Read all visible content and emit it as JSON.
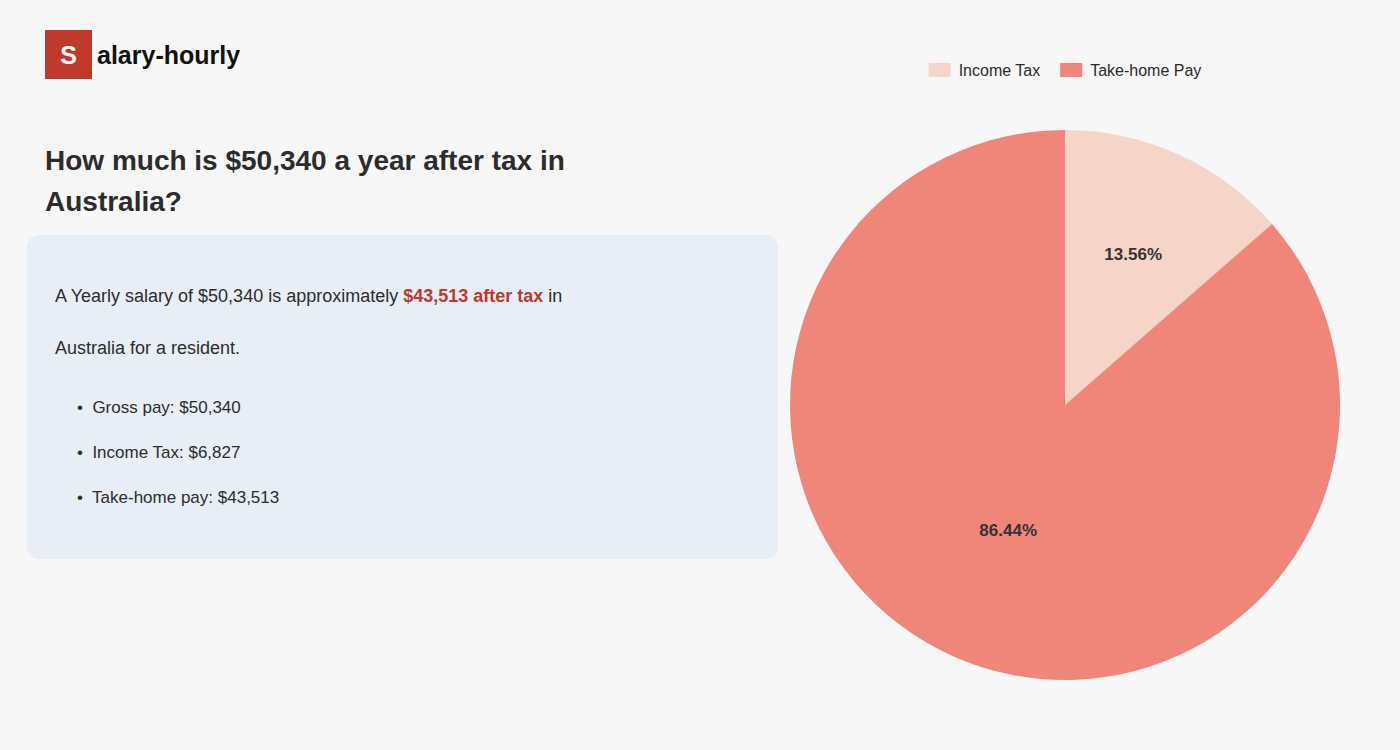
{
  "chart_data": {
    "type": "pie",
    "title": "How much is $50,340 a year after tax in\nAustralia?",
    "categories": [
      "Income Tax",
      "Take-home Pay"
    ],
    "values": [
      13.56,
      86.44
    ],
    "value_labels": [
      "13.56%",
      "86.44%"
    ],
    "colors": [
      "#f5d5c8",
      "#f0857a"
    ],
    "data_labels": true,
    "legend": "top",
    "annotations": [
      {
        "text": "S",
        "color": "#c0392b"
      },
      {
        "text": "alary-hourly"
      },
      {
        "text": "A Yearly salary of $50,340 is approximately "
      },
      {
        "text": "$43,513 after tax",
        "color": "#c0392b"
      },
      {
        "text": " in"
      },
      {
        "text": "Australia for a resident."
      },
      {
        "text": "•  Gross pay: $50,340"
      },
      {
        "text": "•  Income Tax: $6,827"
      },
      {
        "text": "•  Take-home pay: $43,513"
      }
    ]
  }
}
